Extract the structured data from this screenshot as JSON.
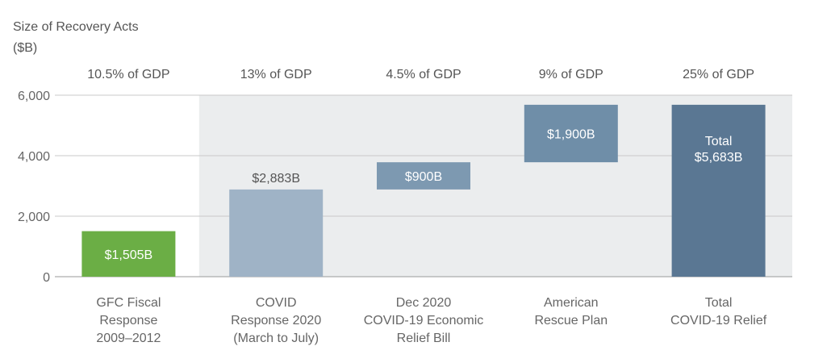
{
  "chart_data": {
    "type": "bar",
    "subtype": "waterfall",
    "title": "Size of Recovery Acts",
    "unit_label": "($B)",
    "ylim": [
      0,
      6000
    ],
    "yticks": [
      "0",
      "2,000",
      "4,000",
      "6,000"
    ],
    "ytick_values": [
      0,
      2000,
      4000,
      6000
    ],
    "grid": true,
    "categories": [
      [
        "GFC Fiscal",
        "Response",
        "2009–2012"
      ],
      [
        "COVID",
        "Response 2020",
        "(March to July)"
      ],
      [
        "Dec 2020",
        "COVID-19 Economic",
        "Relief Bill"
      ],
      [
        "American",
        "Rescue Plan"
      ],
      [
        "Total",
        "COVID-19 Relief"
      ]
    ],
    "gdp_labels": [
      "10.5% of GDP",
      "13% of GDP",
      "4.5% of GDP",
      "9% of GDP",
      "25% of GDP"
    ],
    "bars": [
      {
        "start": 0,
        "end": 1505,
        "label": [
          "$1,505B"
        ],
        "label_inside": true,
        "color": "#6bae45"
      },
      {
        "start": 0,
        "end": 2883,
        "label": [
          "$2,883B"
        ],
        "label_inside": false,
        "color": "#9fb3c6"
      },
      {
        "start": 2883,
        "end": 3783,
        "label": [
          "$900B"
        ],
        "label_inside": true,
        "color": "#7d99b1"
      },
      {
        "start": 3783,
        "end": 5683,
        "label": [
          "$1,900B"
        ],
        "label_inside": true,
        "color": "#6f8ea8"
      },
      {
        "start": 0,
        "end": 5683,
        "label": [
          "Total",
          "$5,683B"
        ],
        "label_inside": true,
        "color": "#5a7793"
      }
    ],
    "shaded_region_from_category": 1,
    "colors": {
      "shade": "#ebedee",
      "grid": "#c8c8c8",
      "text": "#555555",
      "axis_text": "#666666"
    }
  }
}
